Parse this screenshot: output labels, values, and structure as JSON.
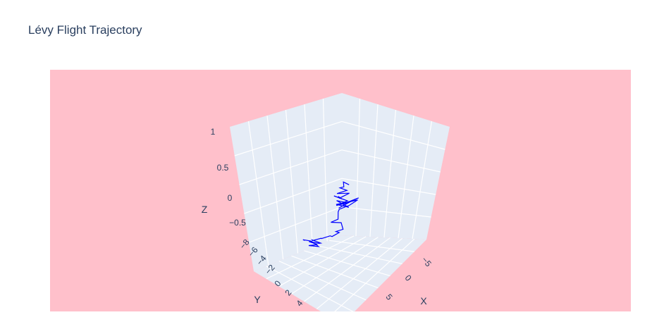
{
  "chart_data": {
    "type": "line3d",
    "title": "Lévy Flight Trajectory",
    "scene_bgcolor": "#ffc0cb",
    "pane_color": "#e5ecf6",
    "grid_color": "#ffffff",
    "line_color": "#0000ff",
    "axes": {
      "x": {
        "label": "X",
        "ticks": [
          "−5",
          "0",
          "5"
        ]
      },
      "y": {
        "label": "Y",
        "ticks": [
          "−8",
          "−6",
          "−4",
          "−2",
          "0",
          "2",
          "4"
        ]
      },
      "z": {
        "label": "Z",
        "ticks": [
          "−0.5",
          "0",
          "0.5",
          "1"
        ]
      }
    },
    "series": [
      {
        "trajectory_xyz": [
          [
            -2.0,
            -3.6,
            0.28
          ],
          [
            -2.4,
            -3.2,
            0.35
          ],
          [
            -1.8,
            -2.6,
            0.3
          ],
          [
            -2.6,
            -2.9,
            0.22
          ],
          [
            -1.2,
            -2.4,
            0.26
          ],
          [
            -2.0,
            -1.8,
            0.18
          ],
          [
            -0.6,
            -2.1,
            0.24
          ],
          [
            -1.4,
            -1.5,
            0.12
          ],
          [
            -2.2,
            -2.2,
            0.08
          ],
          [
            -0.8,
            -1.2,
            0.15
          ],
          [
            -1.6,
            -0.9,
            0.2
          ],
          [
            -0.4,
            -1.6,
            0.1
          ],
          [
            -1.0,
            -0.6,
            0.02
          ],
          [
            0.2,
            -1.0,
            0.12
          ],
          [
            -0.6,
            -0.2,
            0.18
          ],
          [
            0.6,
            -0.7,
            0.05
          ],
          [
            -0.2,
            0.3,
            0.14
          ],
          [
            1.0,
            -0.4,
            0.22
          ],
          [
            0.4,
            0.6,
            0.1
          ],
          [
            1.4,
            0.1,
            0.26
          ],
          [
            2.0,
            -0.6,
            0.35
          ],
          [
            1.6,
            0.8,
            0.3
          ],
          [
            2.6,
            0.2,
            0.38
          ],
          [
            2.2,
            1.0,
            0.28
          ],
          [
            1.2,
            1.4,
            0.16
          ],
          [
            0.6,
            0.9,
            0.04
          ],
          [
            1.4,
            1.8,
            -0.04
          ],
          [
            0.8,
            2.2,
            -0.12
          ],
          [
            2.0,
            2.0,
            -0.08
          ],
          [
            2.8,
            2.6,
            -0.16
          ],
          [
            2.2,
            3.0,
            -0.22
          ],
          [
            3.0,
            3.4,
            -0.18
          ],
          [
            2.4,
            3.8,
            -0.28
          ],
          [
            1.6,
            3.2,
            -0.34
          ],
          [
            0.8,
            3.6,
            -0.42
          ],
          [
            0.2,
            3.0,
            -0.48
          ],
          [
            -0.6,
            3.4,
            -0.55
          ],
          [
            -1.2,
            2.8,
            -0.6
          ],
          [
            -0.4,
            2.4,
            -0.66
          ],
          [
            -1.0,
            2.0,
            -0.72
          ],
          [
            -1.8,
            2.6,
            -0.68
          ],
          [
            -1.4,
            1.8,
            -0.78
          ],
          [
            -2.2,
            2.2,
            -0.82
          ],
          [
            -1.6,
            1.4,
            -0.86
          ],
          [
            -2.4,
            1.6,
            -0.76
          ],
          [
            -2.8,
            2.4,
            -0.7
          ],
          [
            -2.0,
            3.0,
            -0.64
          ]
        ]
      }
    ]
  }
}
